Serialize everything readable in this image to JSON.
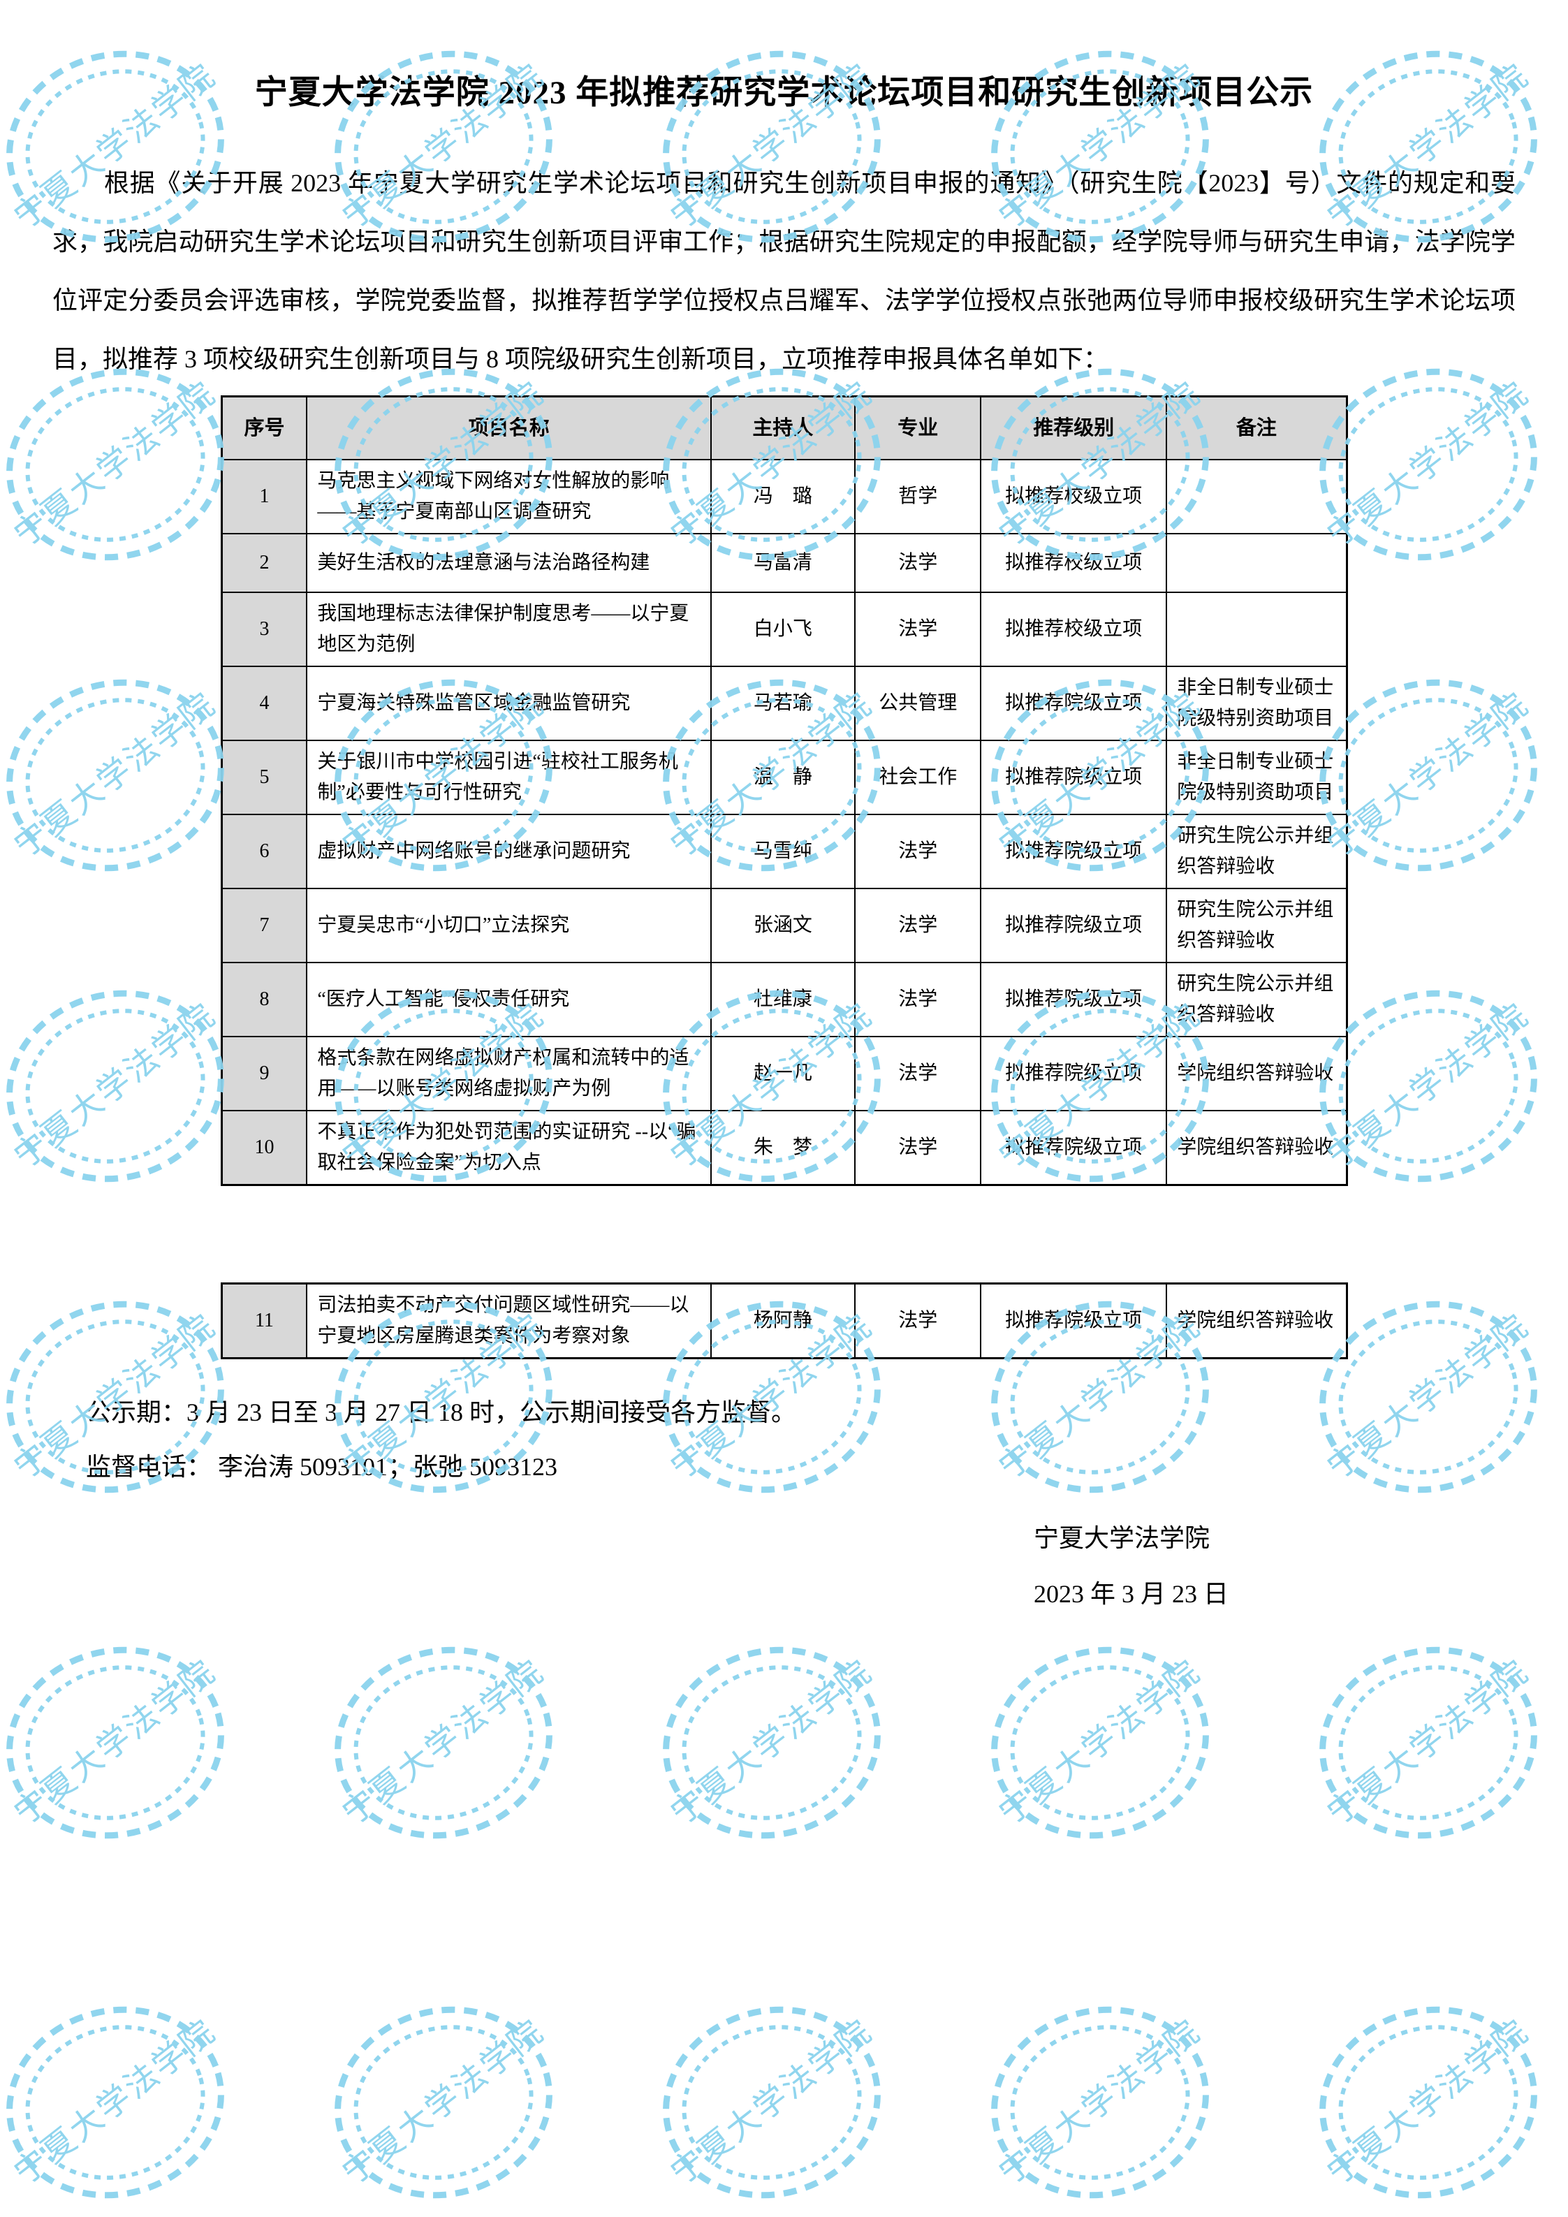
{
  "document": {
    "title": "宁夏大学法学院 2023 年拟推荐研究学术论坛项目和研究生创新项目公示",
    "intro": "根据《关于开展 2023 年宁夏大学研究生学术论坛项目和研究生创新项目申报的通知》（研究生院【2023】号）文件的规定和要求，我院启动研究生学术论坛项目和研究生创新项目评审工作；根据研究生院规定的申报配额，经学院导师与研究生申请，法学院学位评定分委员会评选审核，学院党委监督，拟推荐哲学学位授权点吕耀军、法学学位授权点张弛两位导师申报校级研究生学术论坛项目，拟推荐 3 项校级研究生创新项目与 8 项院级研究生创新项目，立项推荐申报具体名单如下："
  },
  "table": {
    "headers": [
      "序号",
      "项目名称",
      "主持人",
      "专业",
      "推荐级别",
      "备注"
    ],
    "rows": [
      [
        "1",
        "马克思主义视域下网络对女性解放的影响——基于宁夏南部山区调查研究",
        "冯　璐",
        "哲学",
        "拟推荐校级立项",
        ""
      ],
      [
        "2",
        "美好生活权的法理意涵与法治路径构建",
        "马富清",
        "法学",
        "拟推荐校级立项",
        ""
      ],
      [
        "3",
        "我国地理标志法律保护制度思考——以宁夏地区为范例",
        "白小飞",
        "法学",
        "拟推荐校级立项",
        ""
      ],
      [
        "4",
        "宁夏海关特殊监管区域金融监管研究",
        "马若瑜",
        "公共管理",
        "拟推荐院级立项",
        "非全日制专业硕士院级特别资助项目"
      ],
      [
        "5",
        "关于银川市中学校园引进“驻校社工服务机制”必要性与可行性研究",
        "温　静",
        "社会工作",
        "拟推荐院级立项",
        "非全日制专业硕士院级特别资助项目"
      ],
      [
        "6",
        "虚拟财产中网络账号的继承问题研究",
        "马雪纯",
        "法学",
        "拟推荐院级立项",
        "研究生院公示并组织答辩验收"
      ],
      [
        "7",
        "宁夏吴忠市“小切口”立法探究",
        "张涵文",
        "法学",
        "拟推荐院级立项",
        "研究生院公示并组织答辩验收"
      ],
      [
        "8",
        "“医疗人工智能”侵权责任研究",
        "杜维康",
        "法学",
        "拟推荐院级立项",
        "研究生院公示并组织答辩验收"
      ],
      [
        "9",
        "格式条款在网络虚拟财产权属和流转中的适用——以账号类网络虚拟财产为例",
        "赵一凡",
        "法学",
        "拟推荐院级立项",
        "学院组织答辩验收"
      ],
      [
        "10",
        "不真正不作为犯处罚范围的实证研究 --以“骗取社会保险金案”为切入点",
        "朱　梦",
        "法学",
        "拟推荐院级立项",
        "学院组织答辩验收"
      ]
    ],
    "continuation_rows": [
      [
        "11",
        "司法拍卖不动产交付问题区域性研究——以宁夏地区房屋腾退类案件为考察对象",
        "杨阿静",
        "法学",
        "拟推荐院级立项",
        "学院组织答辩验收"
      ]
    ]
  },
  "footer": {
    "publicity_period": "公示期：3 月 23 日至 3 月 27 日 18 时，公示期间接受各方监督。",
    "supervision_phone": "监督电话：  李治涛 5093101；张弛   5093123",
    "signature_org": "宁夏大学法学院",
    "signature_date": "2023 年 3 月 23 日"
  },
  "watermark": {
    "text": "宁夏大学法学院",
    "color": "#8ad3ee"
  }
}
